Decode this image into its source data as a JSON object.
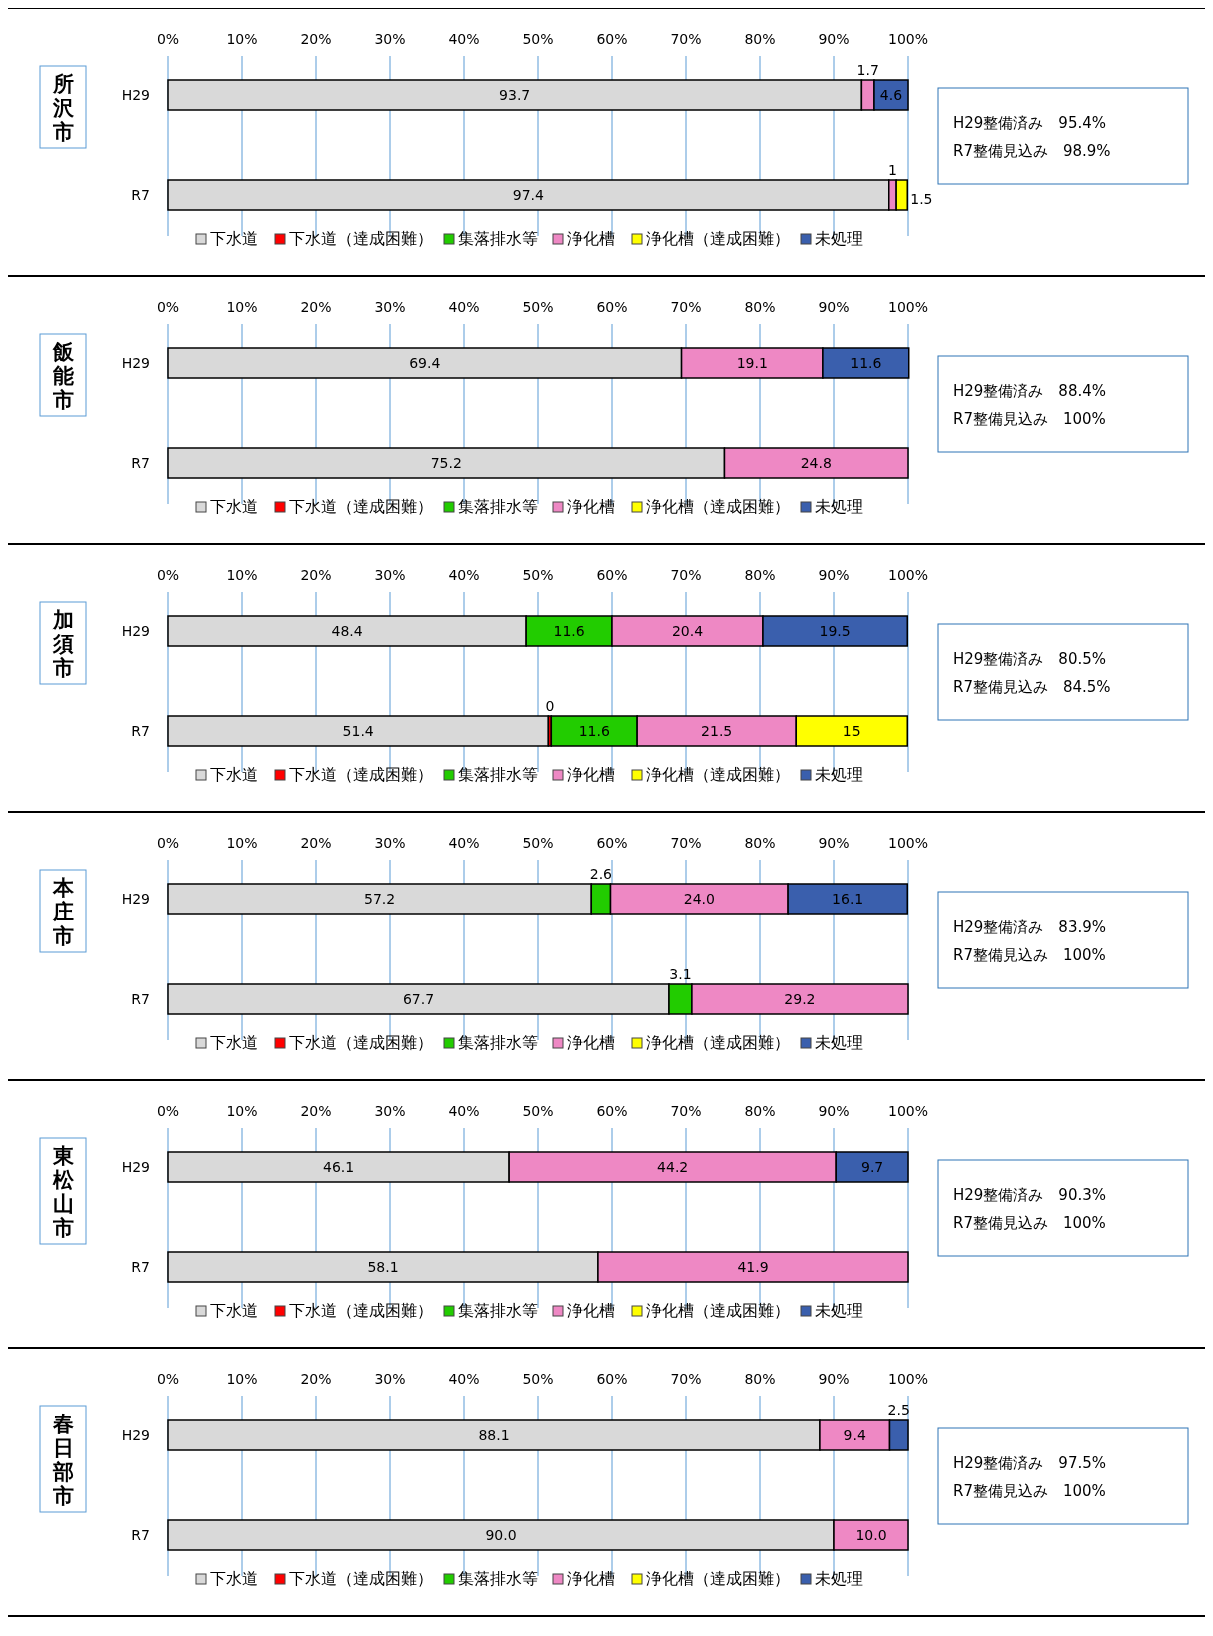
{
  "chart_data": [
    {
      "type": "bar",
      "orientation": "horizontal",
      "stacked": true,
      "title": "所沢市",
      "categories": [
        "H29",
        "R7"
      ],
      "xlim": [
        0,
        100
      ],
      "xticks": [
        {
          "value": 0,
          "label": "0%"
        },
        {
          "value": 10,
          "label": "10%"
        },
        {
          "value": 20,
          "label": "20%"
        },
        {
          "value": 30,
          "label": "30%"
        },
        {
          "value": 40,
          "label": "40%"
        },
        {
          "value": 50,
          "label": "50%"
        },
        {
          "value": 60,
          "label": "60%"
        },
        {
          "value": 70,
          "label": "70%"
        },
        {
          "value": 80,
          "label": "80%"
        },
        {
          "value": 90,
          "label": "90%"
        },
        {
          "value": 100,
          "label": "100%"
        }
      ],
      "grid": "x",
      "legend": "bottom",
      "annotations": [
        "H29整備済み　95.4%",
        "R7整備見込み　98.9%"
      ],
      "series": [
        {
          "name": "下水道",
          "color": "#d9d9d9",
          "values": [
            93.7,
            97.4
          ],
          "value_labels": [
            "93.7",
            "97.4"
          ]
        },
        {
          "name": "下水道（達成困難）",
          "color": "#ff0000",
          "values": [
            null,
            null
          ],
          "value_labels": [
            null,
            null
          ]
        },
        {
          "name": "集落排水等",
          "color": "#22cc00",
          "values": [
            null,
            null
          ],
          "value_labels": [
            null,
            null
          ]
        },
        {
          "name": "浄化槽",
          "color": "#ee88c4",
          "values": [
            1.7,
            1
          ],
          "value_labels": [
            "1.7",
            "1"
          ]
        },
        {
          "name": "浄化槽（達成困難）",
          "color": "#ffff00",
          "values": [
            null,
            1.5
          ],
          "value_labels": [
            null,
            "1.5"
          ]
        },
        {
          "name": "未処理",
          "color": "#3a5fad",
          "values": [
            4.6,
            null
          ],
          "value_labels": [
            "4.6",
            null
          ]
        }
      ]
    },
    {
      "type": "bar",
      "orientation": "horizontal",
      "stacked": true,
      "title": "飯能市",
      "categories": [
        "H29",
        "R7"
      ],
      "xlim": [
        0,
        100
      ],
      "xticks": [
        {
          "value": 0,
          "label": "0%"
        },
        {
          "value": 10,
          "label": "10%"
        },
        {
          "value": 20,
          "label": "20%"
        },
        {
          "value": 30,
          "label": "30%"
        },
        {
          "value": 40,
          "label": "40%"
        },
        {
          "value": 50,
          "label": "50%"
        },
        {
          "value": 60,
          "label": "60%"
        },
        {
          "value": 70,
          "label": "70%"
        },
        {
          "value": 80,
          "label": "80%"
        },
        {
          "value": 90,
          "label": "90%"
        },
        {
          "value": 100,
          "label": "100%"
        }
      ],
      "grid": "x",
      "legend": "bottom",
      "annotations": [
        "H29整備済み　88.4%",
        "R7整備見込み　100%"
      ],
      "series": [
        {
          "name": "下水道",
          "color": "#d9d9d9",
          "values": [
            69.4,
            75.2
          ],
          "value_labels": [
            "69.4",
            "75.2"
          ]
        },
        {
          "name": "下水道（達成困難）",
          "color": "#ff0000",
          "values": [
            null,
            null
          ],
          "value_labels": [
            null,
            null
          ]
        },
        {
          "name": "集落排水等",
          "color": "#22cc00",
          "values": [
            null,
            null
          ],
          "value_labels": [
            null,
            null
          ]
        },
        {
          "name": "浄化槽",
          "color": "#ee88c4",
          "values": [
            19.1,
            24.8
          ],
          "value_labels": [
            "19.1",
            "24.8"
          ]
        },
        {
          "name": "浄化槽（達成困難）",
          "color": "#ffff00",
          "values": [
            null,
            null
          ],
          "value_labels": [
            null,
            null
          ]
        },
        {
          "name": "未処理",
          "color": "#3a5fad",
          "values": [
            11.6,
            null
          ],
          "value_labels": [
            "11.6",
            null
          ]
        }
      ]
    },
    {
      "type": "bar",
      "orientation": "horizontal",
      "stacked": true,
      "title": "加須市",
      "categories": [
        "H29",
        "R7"
      ],
      "xlim": [
        0,
        100
      ],
      "xticks": [
        {
          "value": 0,
          "label": "0%"
        },
        {
          "value": 10,
          "label": "10%"
        },
        {
          "value": 20,
          "label": "20%"
        },
        {
          "value": 30,
          "label": "30%"
        },
        {
          "value": 40,
          "label": "40%"
        },
        {
          "value": 50,
          "label": "50%"
        },
        {
          "value": 60,
          "label": "60%"
        },
        {
          "value": 70,
          "label": "70%"
        },
        {
          "value": 80,
          "label": "80%"
        },
        {
          "value": 90,
          "label": "90%"
        },
        {
          "value": 100,
          "label": "100%"
        }
      ],
      "grid": "x",
      "legend": "bottom",
      "annotations": [
        "H29整備済み　80.5%",
        "R7整備見込み　84.5%"
      ],
      "series": [
        {
          "name": "下水道",
          "color": "#d9d9d9",
          "values": [
            48.4,
            51.4
          ],
          "value_labels": [
            "48.4",
            "51.4"
          ]
        },
        {
          "name": "下水道（達成困難）",
          "color": "#ff0000",
          "values": [
            null,
            0.4
          ],
          "value_labels": [
            null,
            "0"
          ]
        },
        {
          "name": "集落排水等",
          "color": "#22cc00",
          "values": [
            11.6,
            11.6
          ],
          "value_labels": [
            "11.6",
            "11.6"
          ]
        },
        {
          "name": "浄化槽",
          "color": "#ee88c4",
          "values": [
            20.4,
            21.5
          ],
          "value_labels": [
            "20.4",
            "21.5"
          ]
        },
        {
          "name": "浄化槽（達成困難）",
          "color": "#ffff00",
          "values": [
            null,
            15
          ],
          "value_labels": [
            null,
            "15"
          ]
        },
        {
          "name": "未処理",
          "color": "#3a5fad",
          "values": [
            19.5,
            null
          ],
          "value_labels": [
            "19.5",
            null
          ]
        }
      ]
    },
    {
      "type": "bar",
      "orientation": "horizontal",
      "stacked": true,
      "title": "本庄市",
      "categories": [
        "H29",
        "R7"
      ],
      "xlim": [
        0,
        100
      ],
      "xticks": [
        {
          "value": 0,
          "label": "0%"
        },
        {
          "value": 10,
          "label": "10%"
        },
        {
          "value": 20,
          "label": "20%"
        },
        {
          "value": 30,
          "label": "30%"
        },
        {
          "value": 40,
          "label": "40%"
        },
        {
          "value": 50,
          "label": "50%"
        },
        {
          "value": 60,
          "label": "60%"
        },
        {
          "value": 70,
          "label": "70%"
        },
        {
          "value": 80,
          "label": "80%"
        },
        {
          "value": 90,
          "label": "90%"
        },
        {
          "value": 100,
          "label": "100%"
        }
      ],
      "grid": "x",
      "legend": "bottom",
      "annotations": [
        "H29整備済み　83.9%",
        "R7整備見込み　100%"
      ],
      "series": [
        {
          "name": "下水道",
          "color": "#d9d9d9",
          "values": [
            57.2,
            67.7
          ],
          "value_labels": [
            "57.2",
            "67.7"
          ]
        },
        {
          "name": "下水道（達成困難）",
          "color": "#ff0000",
          "values": [
            null,
            null
          ],
          "value_labels": [
            null,
            null
          ]
        },
        {
          "name": "集落排水等",
          "color": "#22cc00",
          "values": [
            2.6,
            3.1
          ],
          "value_labels": [
            "2.6",
            "3.1"
          ]
        },
        {
          "name": "浄化槽",
          "color": "#ee88c4",
          "values": [
            24.0,
            29.2
          ],
          "value_labels": [
            "24.0",
            "29.2"
          ]
        },
        {
          "name": "浄化槽（達成困難）",
          "color": "#ffff00",
          "values": [
            null,
            null
          ],
          "value_labels": [
            null,
            null
          ]
        },
        {
          "name": "未処理",
          "color": "#3a5fad",
          "values": [
            16.1,
            null
          ],
          "value_labels": [
            "16.1",
            null
          ]
        }
      ]
    },
    {
      "type": "bar",
      "orientation": "horizontal",
      "stacked": true,
      "title": "東松山市",
      "categories": [
        "H29",
        "R7"
      ],
      "xlim": [
        0,
        100
      ],
      "xticks": [
        {
          "value": 0,
          "label": "0%"
        },
        {
          "value": 10,
          "label": "10%"
        },
        {
          "value": 20,
          "label": "20%"
        },
        {
          "value": 30,
          "label": "30%"
        },
        {
          "value": 40,
          "label": "40%"
        },
        {
          "value": 50,
          "label": "50%"
        },
        {
          "value": 60,
          "label": "60%"
        },
        {
          "value": 70,
          "label": "70%"
        },
        {
          "value": 80,
          "label": "80%"
        },
        {
          "value": 90,
          "label": "90%"
        },
        {
          "value": 100,
          "label": "100%"
        }
      ],
      "grid": "x",
      "legend": "bottom",
      "annotations": [
        "H29整備済み　90.3%",
        "R7整備見込み　100%"
      ],
      "series": [
        {
          "name": "下水道",
          "color": "#d9d9d9",
          "values": [
            46.1,
            58.1
          ],
          "value_labels": [
            "46.1",
            "58.1"
          ]
        },
        {
          "name": "下水道（達成困難）",
          "color": "#ff0000",
          "values": [
            null,
            null
          ],
          "value_labels": [
            null,
            null
          ]
        },
        {
          "name": "集落排水等",
          "color": "#22cc00",
          "values": [
            null,
            null
          ],
          "value_labels": [
            null,
            null
          ]
        },
        {
          "name": "浄化槽",
          "color": "#ee88c4",
          "values": [
            44.2,
            41.9
          ],
          "value_labels": [
            "44.2",
            "41.9"
          ]
        },
        {
          "name": "浄化槽（達成困難）",
          "color": "#ffff00",
          "values": [
            null,
            null
          ],
          "value_labels": [
            null,
            null
          ]
        },
        {
          "name": "未処理",
          "color": "#3a5fad",
          "values": [
            9.7,
            null
          ],
          "value_labels": [
            "9.7",
            null
          ]
        }
      ]
    },
    {
      "type": "bar",
      "orientation": "horizontal",
      "stacked": true,
      "title": "春日部市",
      "categories": [
        "H29",
        "R7"
      ],
      "xlim": [
        0,
        100
      ],
      "xticks": [
        {
          "value": 0,
          "label": "0%"
        },
        {
          "value": 10,
          "label": "10%"
        },
        {
          "value": 20,
          "label": "20%"
        },
        {
          "value": 30,
          "label": "30%"
        },
        {
          "value": 40,
          "label": "40%"
        },
        {
          "value": 50,
          "label": "50%"
        },
        {
          "value": 60,
          "label": "60%"
        },
        {
          "value": 70,
          "label": "70%"
        },
        {
          "value": 80,
          "label": "80%"
        },
        {
          "value": 90,
          "label": "90%"
        },
        {
          "value": 100,
          "label": "100%"
        }
      ],
      "grid": "x",
      "legend": "bottom",
      "annotations": [
        "H29整備済み　97.5%",
        "R7整備見込み　100%"
      ],
      "series": [
        {
          "name": "下水道",
          "color": "#d9d9d9",
          "values": [
            88.1,
            90.0
          ],
          "value_labels": [
            "88.1",
            "90.0"
          ]
        },
        {
          "name": "下水道（達成困難）",
          "color": "#ff0000",
          "values": [
            null,
            null
          ],
          "value_labels": [
            null,
            null
          ]
        },
        {
          "name": "集落排水等",
          "color": "#22cc00",
          "values": [
            null,
            null
          ],
          "value_labels": [
            null,
            null
          ]
        },
        {
          "name": "浄化槽",
          "color": "#ee88c4",
          "values": [
            9.4,
            10.0
          ],
          "value_labels": [
            "9.4",
            "10.0"
          ]
        },
        {
          "name": "浄化槽（達成困難）",
          "color": "#ffff00",
          "values": [
            null,
            null
          ],
          "value_labels": [
            null,
            null
          ]
        },
        {
          "name": "未処理",
          "color": "#3a5fad",
          "values": [
            2.5,
            null
          ],
          "value_labels": [
            "2.5",
            null
          ]
        }
      ]
    }
  ]
}
